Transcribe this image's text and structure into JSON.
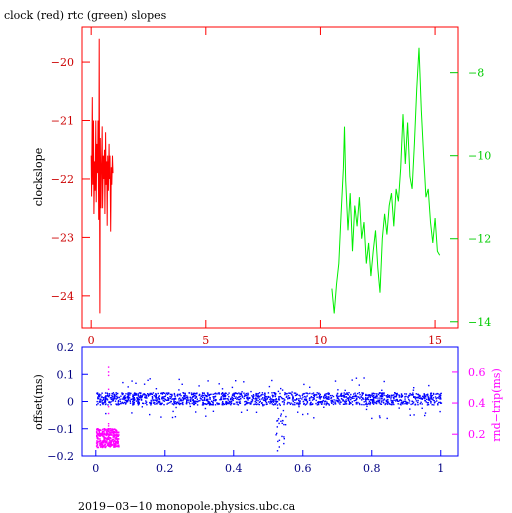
{
  "chart_data": [
    {
      "type": "line",
      "title": "clock (red) rtc (green) slopes",
      "ylabel": "clockslope",
      "xlim": [
        -0.4,
        16.0
      ],
      "xticks": [
        0,
        5,
        10,
        15
      ],
      "ylim_left": [
        -24.55,
        -19.4
      ],
      "yticks_left": [
        -20,
        -21,
        -22,
        -23,
        -24
      ],
      "ylim_right": [
        -14.15,
        -6.9
      ],
      "yticks_right": [
        -8,
        -10,
        -12,
        -14
      ],
      "colors": {
        "clock": "#ff0000",
        "rtc": "#00ee00",
        "left_axis": "#cc0000",
        "right_axis": "#00cc00",
        "frame": "#ff0000"
      },
      "series": [
        {
          "axis": "left",
          "x": [
            0.0,
            0.02,
            0.05,
            0.07,
            0.1,
            0.12,
            0.15,
            0.17,
            0.2,
            0.22,
            0.25,
            0.28,
            0.3,
            0.33,
            0.35,
            0.38,
            0.4,
            0.43,
            0.45,
            0.48,
            0.5,
            0.53,
            0.55,
            0.58,
            0.6,
            0.63,
            0.65,
            0.68,
            0.7,
            0.72,
            0.75,
            0.78,
            0.8,
            0.82,
            0.85,
            0.88,
            0.9,
            0.93,
            0.95
          ],
          "y": [
            -21.6,
            -22.3,
            -20.6,
            -22.1,
            -21.0,
            -22.6,
            -21.7,
            -22.2,
            -21.0,
            -22.4,
            -21.4,
            -21.9,
            -21.0,
            -22.7,
            -19.6,
            -24.3,
            -21.3,
            -22.5,
            -21.8,
            -21.1,
            -22.5,
            -21.6,
            -22.0,
            -21.5,
            -22.6,
            -21.2,
            -22.1,
            -21.7,
            -22.8,
            -21.6,
            -22.2,
            -21.4,
            -22.0,
            -21.6,
            -22.9,
            -21.8,
            -22.1,
            -21.6,
            -21.9
          ]
        },
        {
          "axis": "right",
          "x": [
            10.5,
            10.6,
            10.7,
            10.8,
            10.9,
            11.0,
            11.05,
            11.1,
            11.2,
            11.3,
            11.35,
            11.4,
            11.5,
            11.6,
            11.7,
            11.8,
            11.9,
            12.0,
            12.1,
            12.2,
            12.3,
            12.4,
            12.5,
            12.6,
            12.7,
            12.8,
            12.9,
            13.0,
            13.1,
            13.2,
            13.3,
            13.4,
            13.5,
            13.6,
            13.7,
            13.8,
            13.9,
            14.0,
            14.1,
            14.2,
            14.3,
            14.4,
            14.5,
            14.55,
            14.6,
            14.7,
            14.8,
            14.9,
            15.0,
            15.1,
            15.2
          ],
          "y": [
            -13.2,
            -13.8,
            -13.1,
            -12.6,
            -11.4,
            -10.3,
            -9.3,
            -10.6,
            -11.8,
            -10.9,
            -11.6,
            -12.3,
            -11.2,
            -11.7,
            -11.0,
            -12.0,
            -11.6,
            -12.6,
            -12.1,
            -12.9,
            -12.3,
            -11.8,
            -12.7,
            -13.3,
            -12.0,
            -11.4,
            -11.9,
            -11.2,
            -10.9,
            -11.7,
            -10.8,
            -11.1,
            -10.3,
            -9.0,
            -10.2,
            -9.2,
            -10.5,
            -10.8,
            -9.7,
            -8.4,
            -7.4,
            -8.9,
            -10.0,
            -10.5,
            -11.0,
            -10.8,
            -11.6,
            -12.1,
            -11.5,
            -12.3,
            -12.4
          ]
        }
      ]
    },
    {
      "type": "scatter",
      "xlim": [
        -0.04,
        1.05
      ],
      "xticks": [
        0,
        0.2,
        0.4,
        0.6,
        0.8,
        1
      ],
      "ylim_left": [
        -0.2,
        0.2
      ],
      "yticks_left": [
        0.2,
        0.1,
        0,
        -0.1,
        -0.2
      ],
      "ylabel_left": "offset(ms)",
      "ylim_right": [
        0.06,
        0.76
      ],
      "yticks_right": [
        0.6,
        0.4,
        0.2
      ],
      "ylabel_right": "rnd−trip(ms)",
      "colors": {
        "offset": "#0000ff",
        "roundtrip": "#ff00ff",
        "frame": "#0000ff",
        "right_axis": "#ff00ff"
      },
      "series": [
        {
          "name": "offset",
          "axis": "left",
          "x_range": [
            0.0,
            1.0
          ],
          "band": [
            -0.01,
            0.035
          ],
          "scatter": [
            -0.06,
            0.09
          ]
        },
        {
          "name": "roundtrip",
          "axis": "right",
          "x_range": [
            0.0,
            0.065
          ],
          "band": [
            0.12,
            0.24
          ],
          "spike": 0.7
        }
      ]
    }
  ],
  "footer": "2019−03−10  monopole.physics.ubc.ca"
}
